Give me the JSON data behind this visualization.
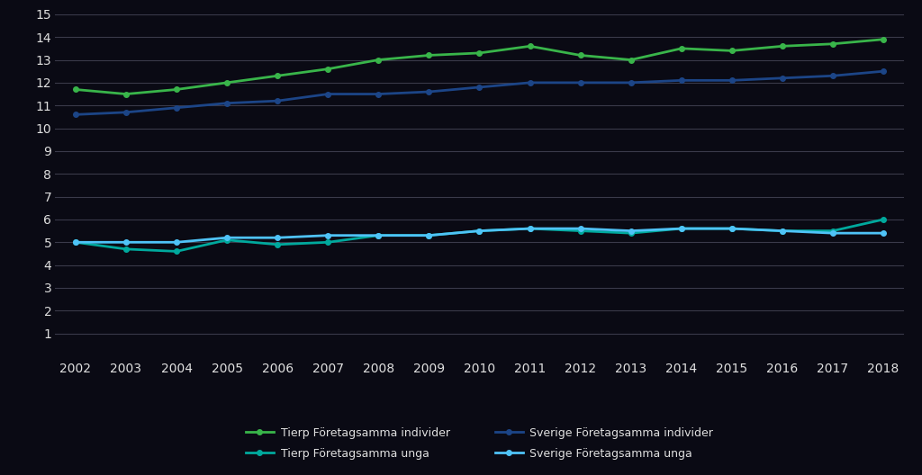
{
  "years": [
    2002,
    2003,
    2004,
    2005,
    2006,
    2007,
    2008,
    2009,
    2010,
    2011,
    2012,
    2013,
    2014,
    2015,
    2016,
    2017,
    2018
  ],
  "tierp_individer": [
    11.7,
    11.5,
    11.7,
    12.0,
    12.3,
    12.6,
    13.0,
    13.2,
    13.3,
    13.6,
    13.2,
    13.0,
    13.5,
    13.4,
    13.6,
    13.7,
    13.9
  ],
  "tierp_unga": [
    5.0,
    4.7,
    4.6,
    5.1,
    4.9,
    5.0,
    5.3,
    5.3,
    5.5,
    5.6,
    5.5,
    5.4,
    5.6,
    5.6,
    5.5,
    5.5,
    6.0
  ],
  "sverige_individer": [
    10.6,
    10.7,
    10.9,
    11.1,
    11.2,
    11.5,
    11.5,
    11.6,
    11.8,
    12.0,
    12.0,
    12.0,
    12.1,
    12.1,
    12.2,
    12.3,
    12.5
  ],
  "sverige_unga": [
    5.0,
    5.0,
    5.0,
    5.2,
    5.2,
    5.3,
    5.3,
    5.3,
    5.5,
    5.6,
    5.6,
    5.5,
    5.6,
    5.6,
    5.5,
    5.4,
    5.4
  ],
  "color_tierp_individer": "#39b54a",
  "color_tierp_unga": "#00a99d",
  "color_sverige_individer": "#1c4587",
  "color_sverige_unga": "#4fc3f7",
  "legend_tierp_individer": "Tierp Företagsamma individer",
  "legend_tierp_unga": "Tierp Företagsamma unga",
  "legend_sverige_individer": "Sverige Företagsamma individer",
  "legend_sverige_unga": "Sverige Företagsamma unga",
  "ylim": [
    0,
    15
  ],
  "yticks": [
    1,
    2,
    3,
    4,
    5,
    6,
    7,
    8,
    9,
    10,
    11,
    12,
    13,
    14,
    15
  ],
  "background_color": "#0a0a14",
  "grid_color": "#3a3a4a",
  "text_color": "#e0e0e0",
  "tick_fontsize": 10,
  "legend_fontsize": 9,
  "line_width": 2.0,
  "marker_size": 4
}
